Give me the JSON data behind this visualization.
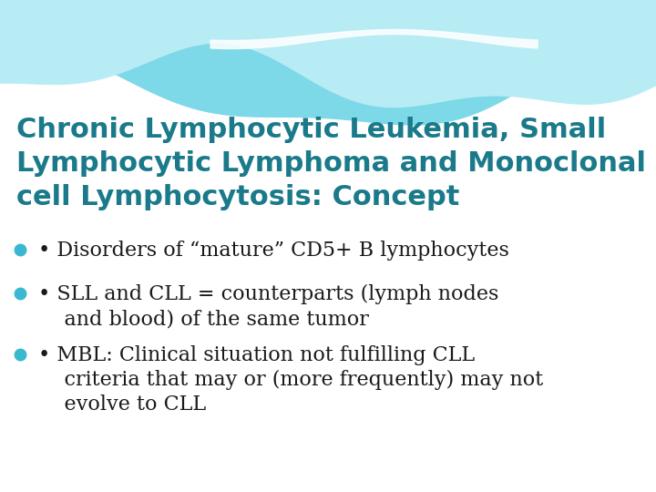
{
  "title_line1": "Chronic Lymphocytic Leukemia, Small",
  "title_line2": "Lymphocytic Lymphoma and Monoclonal B-",
  "title_line3": "cell Lymphocytosis: Concept",
  "title_color": "#1a7a8a",
  "background_color": "#ffffff",
  "bullet_dot_color": "#3ab8d0",
  "bullet_text_color": "#1a1a1a",
  "bullet1": "• Disorders of “mature” CD5+ B lymphocytes",
  "bullet2_line1": "• SLL and CLL = counterparts (lymph nodes",
  "bullet2_line2": "    and blood) of the same tumor",
  "bullet3_line1": "• MBL: Clinical situation not fulfilling CLL",
  "bullet3_line2": "    criteria that may or (more frequently) may not",
  "bullet3_line3": "    evolve to CLL",
  "wave_back_color": "#7dd8e8",
  "wave_front_color": "#b8ecf5",
  "wave_highlight_color": "#ffffff",
  "figsize": [
    7.2,
    5.4
  ],
  "dpi": 100
}
